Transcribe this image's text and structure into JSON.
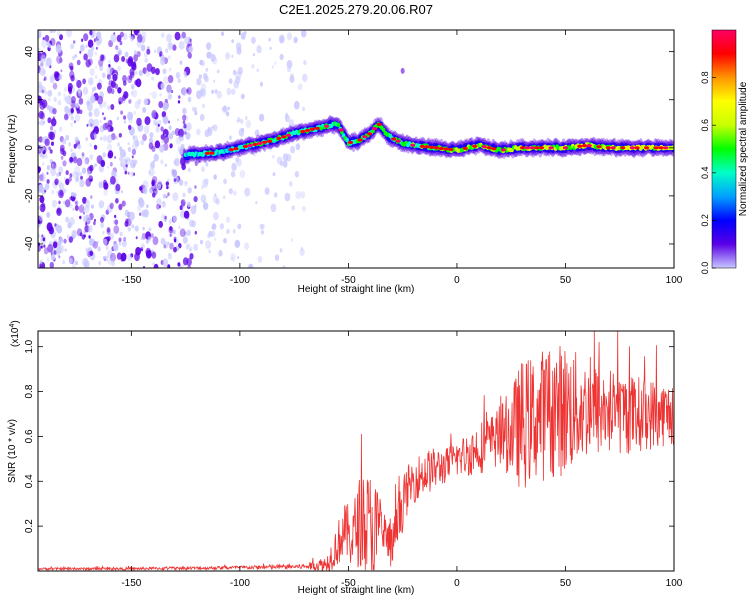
{
  "title": "C2E1.2025.279.20.06.R07",
  "chart_data": [
    {
      "type": "heatmap",
      "name": "spectrogram",
      "xlabel": "Height of straight line (km)",
      "ylabel": "Frequency (Hz)",
      "xlim": [
        -193,
        100
      ],
      "ylim": [
        -50,
        49
      ],
      "xticks": [
        -150,
        -100,
        -50,
        0,
        50,
        100
      ],
      "yticks": [
        -40,
        -20,
        0,
        20,
        40
      ],
      "xtick_labels": [
        "-150",
        "-100",
        "-50",
        "0",
        "50",
        "100"
      ],
      "ytick_labels": [
        "-40",
        "-20",
        "0",
        "20",
        "40"
      ],
      "colorbar": {
        "label": "Normalized spectral amplitude",
        "range": [
          0,
          1
        ],
        "ticks": [
          0.0,
          0.2,
          0.4,
          0.6,
          0.8
        ],
        "tick_labels": [
          "0.0",
          "0.2",
          "0.4",
          "0.6",
          "0.8"
        ],
        "colors": [
          "#c8c8ff",
          "#5a00e6",
          "#0000ff",
          "#00a0ff",
          "#00ffc8",
          "#00ff00",
          "#c8ff00",
          "#ffff00",
          "#ff9600",
          "#ff0000",
          "#ff0064"
        ]
      },
      "ridge_points": [
        [
          -125,
          -3
        ],
        [
          -110,
          -2
        ],
        [
          -95,
          1
        ],
        [
          -85,
          3
        ],
        [
          -75,
          6
        ],
        [
          -65,
          8
        ],
        [
          -55,
          10
        ],
        [
          -50,
          2
        ],
        [
          -45,
          3
        ],
        [
          -40,
          6
        ],
        [
          -36,
          10
        ],
        [
          -33,
          6
        ],
        [
          -30,
          4
        ],
        [
          -25,
          2
        ],
        [
          -20,
          1
        ],
        [
          -10,
          0
        ],
        [
          0,
          -1
        ],
        [
          10,
          1
        ],
        [
          20,
          -1
        ],
        [
          30,
          0
        ],
        [
          40,
          0
        ],
        [
          50,
          0
        ],
        [
          60,
          1
        ],
        [
          70,
          0
        ],
        [
          80,
          0
        ],
        [
          90,
          0
        ],
        [
          100,
          0
        ]
      ],
      "noise_region_x": [
        -193,
        -70
      ],
      "noise_density_note": "dense scattered noise below -120 km, sparse between -120 and -65 km"
    },
    {
      "type": "line",
      "name": "snr",
      "xlabel": "Height of straight line (km)",
      "ylabel": "SNR (10 * v/v)",
      "multiplier_label": "(x10",
      "multiplier_exp": "4",
      "multiplier_close": ")",
      "xlim": [
        -193,
        100
      ],
      "ylim": [
        0,
        1.07
      ],
      "xticks": [
        -150,
        -100,
        -50,
        0,
        50,
        100
      ],
      "yticks": [
        0.2,
        0.4,
        0.6,
        0.8,
        1.0
      ],
      "xtick_labels": [
        "-150",
        "-100",
        "-50",
        "0",
        "50",
        "100"
      ],
      "ytick_labels": [
        "0.2",
        "0.4",
        "0.6",
        "0.8",
        "1.0"
      ],
      "color": "#ee3333",
      "envelope": {
        "x": [
          -193,
          -150,
          -100,
          -70,
          -60,
          -55,
          -52,
          -48,
          -45,
          -42,
          -38,
          -35,
          -30,
          -25,
          -22,
          -18,
          -12,
          -5,
          0,
          5,
          10,
          15,
          20,
          25,
          30,
          35,
          40,
          45,
          50,
          55,
          60,
          70,
          80,
          90,
          100
        ],
        "mean": [
          0.01,
          0.01,
          0.015,
          0.02,
          0.03,
          0.12,
          0.18,
          0.15,
          0.22,
          0.2,
          0.15,
          0.18,
          0.1,
          0.3,
          0.38,
          0.42,
          0.45,
          0.47,
          0.5,
          0.52,
          0.55,
          0.57,
          0.6,
          0.62,
          0.65,
          0.68,
          0.7,
          0.72,
          0.72,
          0.72,
          0.72,
          0.71,
          0.7,
          0.7,
          0.7
        ],
        "spread": [
          0.005,
          0.006,
          0.008,
          0.012,
          0.04,
          0.1,
          0.12,
          0.15,
          0.2,
          0.25,
          0.3,
          0.12,
          0.1,
          0.12,
          0.1,
          0.1,
          0.1,
          0.08,
          0.08,
          0.1,
          0.12,
          0.12,
          0.14,
          0.2,
          0.3,
          0.28,
          0.3,
          0.3,
          0.3,
          0.26,
          0.22,
          0.2,
          0.18,
          0.16,
          0.14
        ]
      }
    }
  ]
}
